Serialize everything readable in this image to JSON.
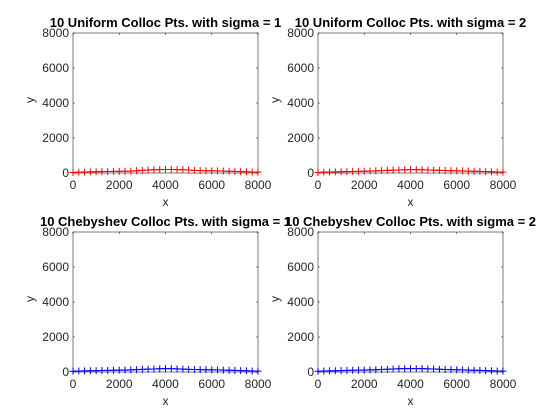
{
  "chart_data": [
    {
      "type": "line",
      "title": "10 Uniform Colloc Pts. with sigma = 1",
      "xlabel": "x",
      "ylabel": "y",
      "xlim": [
        0,
        8000
      ],
      "ylim": [
        0,
        8000
      ],
      "xticks": [
        "0",
        "2000",
        "4000",
        "6000",
        "8000"
      ],
      "yticks": [
        "0",
        "2000",
        "4000",
        "6000",
        "8000"
      ],
      "grid": false,
      "series": [
        {
          "color": "#ff0000",
          "marker": "plus",
          "x": [
            0,
            250,
            500,
            750,
            1000,
            1250,
            1500,
            1750,
            2000,
            2250,
            2500,
            2750,
            3000,
            3250,
            3500,
            3750,
            4000,
            4250,
            4500,
            4750,
            5000,
            5250,
            5500,
            5750,
            6000,
            6250,
            6500,
            6750,
            7000,
            7250,
            7500,
            7750,
            8000
          ],
          "y": [
            30,
            50,
            60,
            65,
            70,
            80,
            85,
            90,
            95,
            100,
            110,
            130,
            150,
            170,
            185,
            195,
            200,
            200,
            195,
            185,
            170,
            150,
            140,
            130,
            125,
            120,
            110,
            100,
            90,
            80,
            70,
            60,
            50
          ]
        }
      ]
    },
    {
      "type": "line",
      "title": "10 Uniform Colloc Pts. with sigma = 2",
      "xlabel": "x",
      "ylabel": "y",
      "xlim": [
        0,
        8000
      ],
      "ylim": [
        0,
        8000
      ],
      "xticks": [
        "0",
        "2000",
        "4000",
        "6000",
        "8000"
      ],
      "yticks": [
        "0",
        "2000",
        "4000",
        "6000",
        "8000"
      ],
      "grid": false,
      "series": [
        {
          "color": "#ff0000",
          "marker": "plus",
          "x": [
            0,
            250,
            500,
            750,
            1000,
            1250,
            1500,
            1750,
            2000,
            2250,
            2500,
            2750,
            3000,
            3250,
            3500,
            3750,
            4000,
            4250,
            4500,
            4750,
            5000,
            5250,
            5500,
            5750,
            6000,
            6250,
            6500,
            6750,
            7000,
            7250,
            7500,
            7750,
            8000
          ],
          "y": [
            30,
            50,
            60,
            65,
            70,
            80,
            85,
            95,
            100,
            110,
            120,
            135,
            150,
            165,
            175,
            185,
            190,
            190,
            185,
            175,
            165,
            150,
            140,
            130,
            125,
            120,
            110,
            100,
            90,
            80,
            70,
            60,
            50
          ]
        }
      ]
    },
    {
      "type": "line",
      "title": "10 Chebyshev Colloc Pts. with sigma = 1",
      "xlabel": "x",
      "ylabel": "y",
      "xlim": [
        0,
        8000
      ],
      "ylim": [
        0,
        8000
      ],
      "xticks": [
        "0",
        "2000",
        "4000",
        "6000",
        "8000"
      ],
      "yticks": [
        "0",
        "2000",
        "4000",
        "6000",
        "8000"
      ],
      "grid": false,
      "series": [
        {
          "color": "#0000ff",
          "marker": "plus",
          "x": [
            0,
            250,
            500,
            750,
            1000,
            1250,
            1500,
            1750,
            2000,
            2250,
            2500,
            2750,
            3000,
            3250,
            3500,
            3750,
            4000,
            4250,
            4500,
            4750,
            5000,
            5250,
            5500,
            5750,
            6000,
            6250,
            6500,
            6750,
            7000,
            7250,
            7500,
            7750,
            8000
          ],
          "y": [
            40,
            55,
            65,
            70,
            75,
            85,
            95,
            100,
            105,
            110,
            120,
            135,
            150,
            165,
            175,
            185,
            190,
            190,
            180,
            165,
            150,
            140,
            135,
            130,
            125,
            120,
            110,
            100,
            90,
            80,
            70,
            60,
            50
          ]
        }
      ]
    },
    {
      "type": "line",
      "title": "10 Chebyshev Colloc Pts. with sigma = 2",
      "xlabel": "x",
      "ylabel": "y",
      "xlim": [
        0,
        8000
      ],
      "ylim": [
        0,
        8000
      ],
      "xticks": [
        "0",
        "2000",
        "4000",
        "6000",
        "8000"
      ],
      "yticks": [
        "0",
        "2000",
        "4000",
        "6000",
        "8000"
      ],
      "grid": false,
      "series": [
        {
          "color": "#0000ff",
          "marker": "plus",
          "x": [
            0,
            250,
            500,
            750,
            1000,
            1250,
            1500,
            1750,
            2000,
            2250,
            2500,
            2750,
            3000,
            3250,
            3500,
            3750,
            4000,
            4250,
            4500,
            4750,
            5000,
            5250,
            5500,
            5750,
            6000,
            6250,
            6500,
            6750,
            7000,
            7250,
            7500,
            7750,
            8000
          ],
          "y": [
            40,
            55,
            65,
            70,
            80,
            90,
            100,
            105,
            110,
            120,
            130,
            145,
            160,
            175,
            185,
            190,
            195,
            195,
            190,
            180,
            170,
            155,
            145,
            135,
            130,
            120,
            110,
            100,
            90,
            80,
            70,
            60,
            50
          ]
        }
      ]
    }
  ]
}
